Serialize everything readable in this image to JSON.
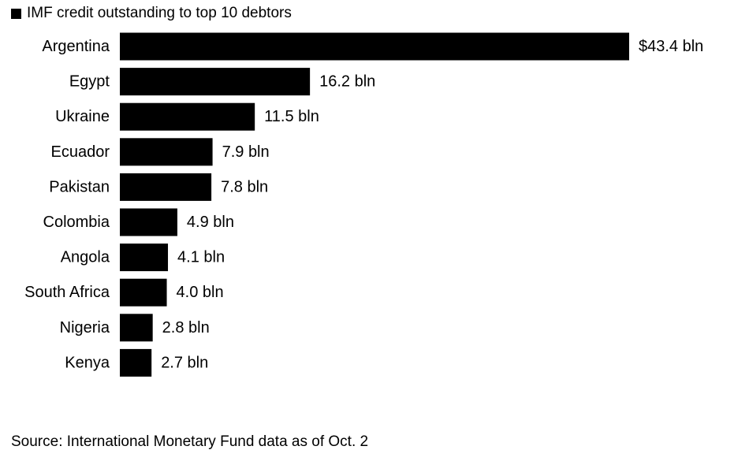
{
  "chart_data": {
    "type": "bar",
    "orientation": "horizontal",
    "title": "",
    "legend": [
      "IMF credit outstanding to top 10 debtors"
    ],
    "legend_placement": "top-left",
    "categories": [
      "Argentina",
      "Egypt",
      "Ukraine",
      "Ecuador",
      "Pakistan",
      "Colombia",
      "Angola",
      "South Africa",
      "Nigeria",
      "Kenya"
    ],
    "series": [
      {
        "name": "IMF credit outstanding to top 10 debtors",
        "values": [
          43.4,
          16.2,
          11.5,
          7.9,
          7.8,
          4.9,
          4.1,
          4.0,
          2.8,
          2.7
        ],
        "labels": [
          "$43.4 bln",
          "16.2 bln",
          "11.5 bln",
          "7.9 bln",
          "7.8 bln",
          "4.9 bln",
          "4.1 bln",
          "4.0 bln",
          "2.8 bln",
          "2.7 bln"
        ]
      }
    ],
    "xlim": [
      0,
      43.4
    ],
    "grid": false,
    "colors": {
      "bar": "#000000",
      "text": "#000000",
      "background": "#ffffff"
    }
  },
  "source": "Source: International Monetary Fund data as of Oct. 2"
}
